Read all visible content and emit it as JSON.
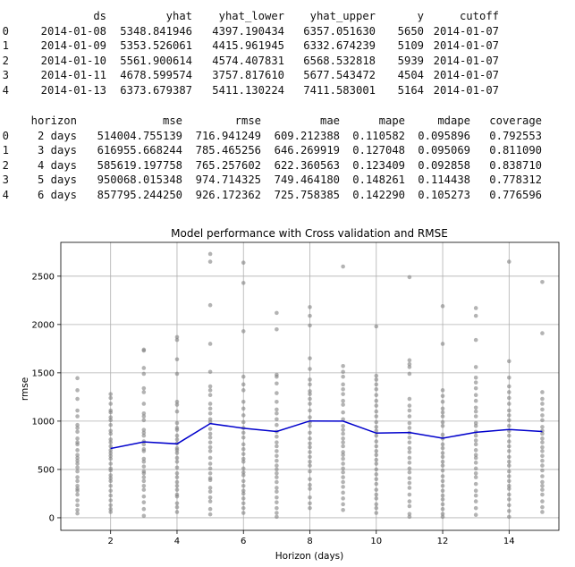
{
  "table1": {
    "columns": [
      "",
      "ds",
      "yhat",
      "yhat_lower",
      "yhat_upper",
      "y",
      "cutoff"
    ],
    "rows": [
      [
        "0",
        "2014-01-08",
        "5348.841946",
        "4397.190434",
        "6357.051630",
        "5650",
        "2014-01-07"
      ],
      [
        "1",
        "2014-01-09",
        "5353.526061",
        "4415.961945",
        "6332.674239",
        "5109",
        "2014-01-07"
      ],
      [
        "2",
        "2014-01-10",
        "5561.900614",
        "4574.407831",
        "6568.532818",
        "5939",
        "2014-01-07"
      ],
      [
        "3",
        "2014-01-11",
        "4678.599574",
        "3757.817610",
        "5677.543472",
        "4504",
        "2014-01-07"
      ],
      [
        "4",
        "2014-01-13",
        "6373.679387",
        "5411.130224",
        "7411.583001",
        "5164",
        "2014-01-07"
      ]
    ]
  },
  "table2": {
    "columns": [
      "",
      "horizon",
      "mse",
      "rmse",
      "mae",
      "mape",
      "mdape",
      "coverage"
    ],
    "rows": [
      [
        "0",
        "2 days",
        "514004.755139",
        "716.941249",
        "609.212388",
        "0.110582",
        "0.095896",
        "0.792553"
      ],
      [
        "1",
        "3 days",
        "616955.668244",
        "785.465256",
        "646.269919",
        "0.127048",
        "0.095069",
        "0.811090"
      ],
      [
        "2",
        "4 days",
        "585619.197758",
        "765.257602",
        "622.360563",
        "0.123409",
        "0.092858",
        "0.838710"
      ],
      [
        "3",
        "5 days",
        "950068.015348",
        "974.714325",
        "749.464180",
        "0.148261",
        "0.114438",
        "0.778312"
      ],
      [
        "4",
        "6 days",
        "857795.244250",
        "926.172362",
        "725.758385",
        "0.142290",
        "0.105273",
        "0.776596"
      ]
    ]
  },
  "chart_data": {
    "type": "scatter",
    "title": "Model performance with Cross validation and RMSE",
    "xlabel": "Horizon (days)",
    "ylabel": "rmse",
    "xlim": [
      0.5,
      15.5
    ],
    "ylim": [
      -130,
      2850
    ],
    "xticks": [
      2,
      4,
      6,
      8,
      10,
      12,
      14
    ],
    "yticks": [
      0,
      500,
      1000,
      1500,
      2000,
      2500
    ],
    "grid": true,
    "colors": {
      "points": "#808080",
      "line": "#0000cc",
      "grid": "#b0b0b0"
    },
    "line": {
      "x": [
        2,
        3,
        4,
        5,
        6,
        7,
        8,
        9,
        10,
        11,
        12,
        13,
        14,
        15
      ],
      "y": [
        717,
        785,
        765,
        975,
        926,
        893,
        1002,
        1000,
        876,
        882,
        823,
        884,
        913,
        893
      ]
    },
    "points": [
      {
        "x": 1,
        "y": [
          1445,
          1320,
          1230,
          1110,
          1050,
          960,
          930,
          890,
          820,
          780,
          760,
          700,
          650,
          620,
          590,
          560,
          520,
          480,
          420,
          380,
          330,
          300,
          280,
          240,
          180,
          130,
          80,
          45
        ]
      },
      {
        "x": 2,
        "y": [
          1280,
          1240,
          1180,
          1110,
          1090,
          1040,
          1010,
          960,
          900,
          870,
          810,
          780,
          740,
          700,
          670,
          640,
          610,
          560,
          510,
          490,
          440,
          410,
          380,
          330,
          280,
          230,
          180,
          130,
          90,
          60
        ]
      },
      {
        "x": 3,
        "y": [
          1740,
          1730,
          1550,
          1490,
          1340,
          1300,
          1180,
          1080,
          1050,
          1010,
          910,
          880,
          850,
          790,
          760,
          710,
          690,
          610,
          580,
          530,
          480,
          460,
          420,
          380,
          330,
          290,
          220,
          160,
          90,
          20
        ]
      },
      {
        "x": 4,
        "y": [
          1870,
          1840,
          1640,
          1490,
          1200,
          1170,
          1100,
          980,
          930,
          910,
          850,
          810,
          770,
          720,
          700,
          670,
          620,
          580,
          520,
          460,
          420,
          370,
          330,
          290,
          240,
          220,
          150,
          110,
          60
        ]
      },
      {
        "x": 5,
        "y": [
          2730,
          2650,
          2200,
          1800,
          1510,
          1360,
          1320,
          1270,
          1180,
          1130,
          1080,
          1020,
          990,
          920,
          870,
          830,
          780,
          730,
          690,
          620,
          560,
          510,
          460,
          410,
          390,
          310,
          270,
          210,
          170,
          90,
          35
        ]
      },
      {
        "x": 6,
        "y": [
          2640,
          2430,
          1930,
          1460,
          1380,
          1320,
          1200,
          1130,
          1060,
          990,
          930,
          880,
          830,
          760,
          710,
          660,
          610,
          580,
          510,
          470,
          440,
          380,
          330,
          280,
          250,
          200,
          150,
          100,
          50
        ]
      },
      {
        "x": 7,
        "y": [
          2120,
          1950,
          1480,
          1460,
          1390,
          1290,
          1200,
          1120,
          1080,
          1020,
          960,
          890,
          840,
          780,
          740,
          690,
          640,
          590,
          540,
          500,
          460,
          420,
          370,
          310,
          270,
          210,
          160,
          100,
          50,
          10
        ]
      },
      {
        "x": 8,
        "y": [
          2180,
          2090,
          1990,
          1650,
          1540,
          1430,
          1380,
          1310,
          1280,
          1230,
          1180,
          1110,
          1040,
          990,
          950,
          880,
          820,
          770,
          730,
          680,
          630,
          580,
          540,
          480,
          400,
          340,
          300,
          210,
          150,
          100
        ]
      },
      {
        "x": 9,
        "y": [
          2600,
          1570,
          1510,
          1460,
          1380,
          1330,
          1280,
          1210,
          1170,
          1090,
          1020,
          950,
          910,
          870,
          820,
          780,
          740,
          680,
          650,
          610,
          560,
          510,
          470,
          420,
          370,
          320,
          260,
          200,
          140,
          80
        ]
      },
      {
        "x": 10,
        "y": [
          1980,
          1470,
          1430,
          1380,
          1330,
          1270,
          1210,
          1160,
          1100,
          1050,
          990,
          940,
          900,
          850,
          790,
          740,
          690,
          650,
          600,
          560,
          500,
          450,
          400,
          350,
          290,
          240,
          200,
          140,
          100,
          50
        ]
      },
      {
        "x": 11,
        "y": [
          2490,
          1630,
          1590,
          1560,
          1490,
          1230,
          1160,
          1110,
          1050,
          980,
          930,
          880,
          830,
          780,
          720,
          680,
          620,
          570,
          510,
          470,
          410,
          360,
          310,
          240,
          170,
          120,
          40,
          10
        ]
      },
      {
        "x": 12,
        "y": [
          2190,
          1800,
          1320,
          1260,
          1200,
          1130,
          1090,
          1050,
          990,
          950,
          860,
          820,
          760,
          720,
          670,
          630,
          580,
          540,
          490,
          430,
          380,
          330,
          280,
          230,
          190,
          140,
          90,
          40,
          10
        ]
      },
      {
        "x": 13,
        "y": [
          2170,
          2090,
          1840,
          1560,
          1450,
          1400,
          1340,
          1270,
          1210,
          1140,
          1100,
          1050,
          980,
          950,
          890,
          850,
          800,
          760,
          700,
          650,
          620,
          570,
          510,
          460,
          420,
          350,
          280,
          230,
          170,
          100,
          30
        ]
      },
      {
        "x": 14,
        "y": [
          2650,
          1620,
          1450,
          1360,
          1300,
          1240,
          1180,
          1110,
          1060,
          1010,
          950,
          900,
          850,
          790,
          740,
          690,
          630,
          580,
          540,
          480,
          430,
          380,
          330,
          300,
          240,
          190,
          130,
          70,
          10
        ]
      },
      {
        "x": 15,
        "y": [
          2440,
          1910,
          1300,
          1230,
          1180,
          1120,
          1060,
          1010,
          940,
          900,
          870,
          820,
          780,
          730,
          690,
          640,
          590,
          540,
          490,
          430,
          370,
          330,
          290,
          240,
          170,
          110,
          60
        ]
      }
    ]
  }
}
